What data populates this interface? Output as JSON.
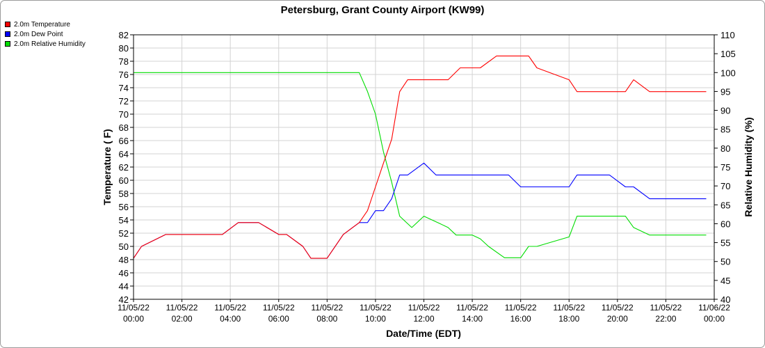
{
  "chart_data": {
    "type": "line",
    "title": "Petersburg, Grant County Airport (KW99)",
    "xlabel": "Date/Time (EDT)",
    "ylabel_left": "Temperature ( F)",
    "ylabel_right": "Relative Humidity (%)",
    "grid": true,
    "legend_position": "top-left",
    "x_range_hours": [
      0,
      24
    ],
    "ylim_left": [
      42,
      82
    ],
    "ylim_right": [
      40,
      110
    ],
    "left_ticks": [
      42,
      44,
      46,
      48,
      50,
      52,
      54,
      56,
      58,
      60,
      62,
      64,
      66,
      68,
      70,
      72,
      74,
      76,
      78,
      80,
      82
    ],
    "right_ticks": [
      40,
      45,
      50,
      55,
      60,
      65,
      70,
      75,
      80,
      85,
      90,
      95,
      100,
      105,
      110
    ],
    "x_ticks": [
      {
        "hour": 0,
        "date": "11/05/22",
        "time": "00:00"
      },
      {
        "hour": 2,
        "date": "11/05/22",
        "time": "02:00"
      },
      {
        "hour": 4,
        "date": "11/05/22",
        "time": "04:00"
      },
      {
        "hour": 6,
        "date": "11/05/22",
        "time": "06:00"
      },
      {
        "hour": 8,
        "date": "11/05/22",
        "time": "08:00"
      },
      {
        "hour": 10,
        "date": "11/05/22",
        "time": "10:00"
      },
      {
        "hour": 12,
        "date": "11/05/22",
        "time": "12:00"
      },
      {
        "hour": 14,
        "date": "11/05/22",
        "time": "14:00"
      },
      {
        "hour": 16,
        "date": "11/05/22",
        "time": "16:00"
      },
      {
        "hour": 18,
        "date": "11/05/22",
        "time": "18:00"
      },
      {
        "hour": 20,
        "date": "11/05/22",
        "time": "20:00"
      },
      {
        "hour": 22,
        "date": "11/05/22",
        "time": "22:00"
      },
      {
        "hour": 24,
        "date": "11/06/22",
        "time": "00:00"
      }
    ],
    "series": [
      {
        "name": "2.0m Temperature",
        "color": "#ff0000",
        "axis": "left",
        "x": [
          0,
          0.33,
          1.33,
          3.67,
          4.33,
          5.17,
          6,
          6.33,
          7,
          7.33,
          8,
          8.67,
          9.33,
          9.67,
          10,
          10.33,
          10.67,
          11,
          11.33,
          12,
          12.5,
          13,
          13.5,
          14,
          14.33,
          15,
          15.5,
          16,
          16.33,
          16.67,
          18,
          18.33,
          19,
          19.67,
          20.33,
          20.67,
          21.33,
          22,
          22.67,
          23.67
        ],
        "y": [
          48.2,
          50,
          51.8,
          51.8,
          53.6,
          53.6,
          51.8,
          51.8,
          50,
          48.2,
          48.2,
          51.8,
          53.6,
          55.4,
          59,
          62.6,
          66.2,
          73.4,
          75.2,
          75.2,
          75.2,
          75.2,
          77,
          77,
          77,
          78.8,
          78.8,
          78.8,
          78.8,
          77,
          75.2,
          73.4,
          73.4,
          73.4,
          73.4,
          75.2,
          73.4,
          73.4,
          73.4,
          73.4
        ]
      },
      {
        "name": "2.0m Dew Point",
        "color": "#0000ff",
        "axis": "left",
        "x": [
          0,
          0.33,
          1.33,
          3.67,
          4.33,
          5.17,
          6,
          6.33,
          7,
          7.33,
          8,
          8.67,
          9.33,
          9.67,
          10,
          10.33,
          10.67,
          11,
          11.33,
          12,
          12.5,
          13,
          13.5,
          14,
          14.33,
          15,
          15.5,
          16,
          16.33,
          16.67,
          18,
          18.33,
          19,
          19.67,
          20.33,
          20.67,
          21.33,
          22,
          22.67,
          23.67
        ],
        "y": [
          48.2,
          50,
          51.8,
          51.8,
          53.6,
          53.6,
          51.8,
          51.8,
          50,
          48.2,
          48.2,
          51.8,
          53.6,
          53.6,
          55.4,
          55.4,
          57.2,
          60.8,
          60.8,
          62.6,
          60.8,
          60.8,
          60.8,
          60.8,
          60.8,
          60.8,
          60.8,
          59,
          59,
          59,
          59,
          60.8,
          60.8,
          60.8,
          59,
          59,
          57.2,
          57.2,
          57.2,
          57.2
        ]
      },
      {
        "name": "2.0m Relative Humidity",
        "color": "#00dd00",
        "axis": "right",
        "x": [
          0,
          9.33,
          9.67,
          10,
          10.33,
          10.67,
          11,
          11.5,
          12,
          12.67,
          13,
          13.33,
          14,
          14.33,
          14.67,
          15.33,
          16,
          16.33,
          16.67,
          18,
          18.33,
          19,
          19.67,
          20.33,
          20.67,
          21.33,
          22,
          22.67,
          23.67
        ],
        "y": [
          100,
          100,
          95,
          89,
          79,
          71,
          62,
          59,
          62,
          60,
          59,
          57,
          57,
          56,
          54,
          51,
          51,
          54,
          54,
          56.5,
          62,
          62,
          62,
          62,
          59,
          57,
          57,
          57,
          57
        ]
      }
    ]
  }
}
